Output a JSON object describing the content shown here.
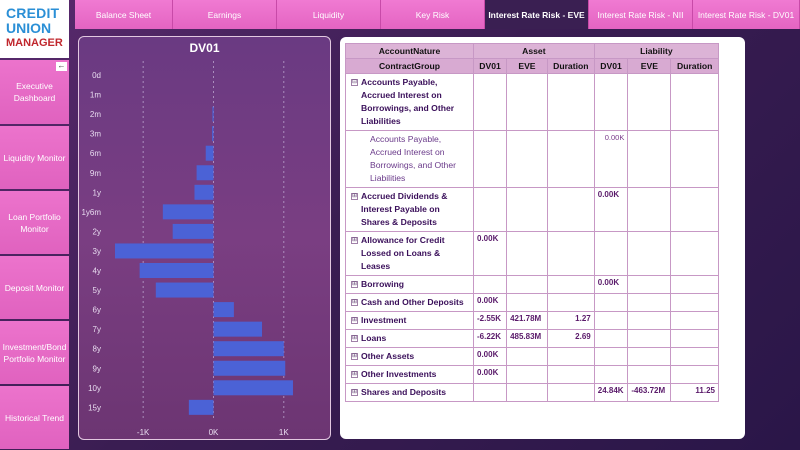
{
  "logo": {
    "line1": "CREDIT",
    "line2": "UNION",
    "line3": "MANAGER"
  },
  "sidebar": {
    "collapse": "←",
    "items": [
      {
        "label": "Executive Dashboard"
      },
      {
        "label": "Liquidity Monitor"
      },
      {
        "label": "Loan Portfolio Monitor"
      },
      {
        "label": "Deposit Monitor"
      },
      {
        "label": "Investment/Bond Portfolio Monitor"
      },
      {
        "label": "Historical Trend"
      }
    ]
  },
  "tabs": [
    {
      "label": "Balance Sheet"
    },
    {
      "label": "Earnings"
    },
    {
      "label": "Liquidity"
    },
    {
      "label": "Key Risk"
    },
    {
      "label": "Interest Rate Risk - EVE",
      "active": true
    },
    {
      "label": "Interest Rate Risk - NII"
    },
    {
      "label": "Interest Rate Risk - DV01"
    }
  ],
  "colors": {
    "bar": "#4b62d6",
    "accent": "#e464c2",
    "active_tab": "#3a1f52"
  },
  "chart_data": {
    "type": "bar",
    "orientation": "horizontal",
    "title": "DV01",
    "categories": [
      "0d",
      "1m",
      "2m",
      "3m",
      "6m",
      "9m",
      "1y",
      "1y6m",
      "2y",
      "3y",
      "4y",
      "5y",
      "6y",
      "7y",
      "8y",
      "9y",
      "10y",
      "15y"
    ],
    "values": [
      0,
      0,
      -15,
      -20,
      -110,
      -240,
      -270,
      -720,
      -580,
      -1400,
      -1050,
      -820,
      290,
      690,
      1000,
      1020,
      1130,
      -350
    ],
    "xlim": [
      -1400,
      1500
    ],
    "xticks": [
      "-1K",
      "0K",
      "1K"
    ],
    "xtick_values": [
      -1000,
      0,
      1000
    ],
    "grid": "dashed vertical"
  },
  "table": {
    "headers": {
      "account_nature": "AccountNature",
      "asset": "Asset",
      "liability": "Liability",
      "contract_group": "ContractGroup"
    },
    "subheaders": [
      "DV01",
      "EVE",
      "Duration",
      "DV01",
      "EVE",
      "Duration"
    ],
    "expand_icon": "⊟",
    "collapse_icon": "⊞",
    "rows": [
      {
        "label": "Accounts Payable, Accrued Interest on Borrowings, and Other Liabilities",
        "expanded": true,
        "values": [
          "",
          "",
          "",
          "",
          "",
          ""
        ]
      },
      {
        "label": "Accounts Payable, Accrued Interest on Borrowings, and Other Liabilities",
        "child": true,
        "values": [
          "",
          "",
          "",
          "0.00K",
          "",
          ""
        ]
      },
      {
        "label": "Accrued Dividends & Interest Payable on Shares & Deposits",
        "values": [
          "",
          "",
          "",
          "0.00K",
          "",
          ""
        ]
      },
      {
        "label": "Allowance for Credit Lossed on Loans & Leases",
        "values": [
          "0.00K",
          "",
          "",
          "",
          "",
          ""
        ]
      },
      {
        "label": "Borrowing",
        "values": [
          "",
          "",
          "",
          "0.00K",
          "",
          ""
        ]
      },
      {
        "label": "Cash and Other Deposits",
        "values": [
          "0.00K",
          "",
          "",
          "",
          "",
          ""
        ]
      },
      {
        "label": "Investment",
        "values": [
          "-2.55K",
          "421.78M",
          "1.27",
          "",
          "",
          ""
        ]
      },
      {
        "label": "Loans",
        "values": [
          "-6.22K",
          "485.83M",
          "2.69",
          "",
          "",
          ""
        ]
      },
      {
        "label": "Other Assets",
        "values": [
          "0.00K",
          "",
          "",
          "",
          "",
          ""
        ]
      },
      {
        "label": "Other Investments",
        "values": [
          "0.00K",
          "",
          "",
          "",
          "",
          ""
        ]
      },
      {
        "label": "Shares and Deposits",
        "values": [
          "",
          "",
          "",
          "24.84K",
          "-463.72M",
          "11.25"
        ]
      }
    ]
  }
}
